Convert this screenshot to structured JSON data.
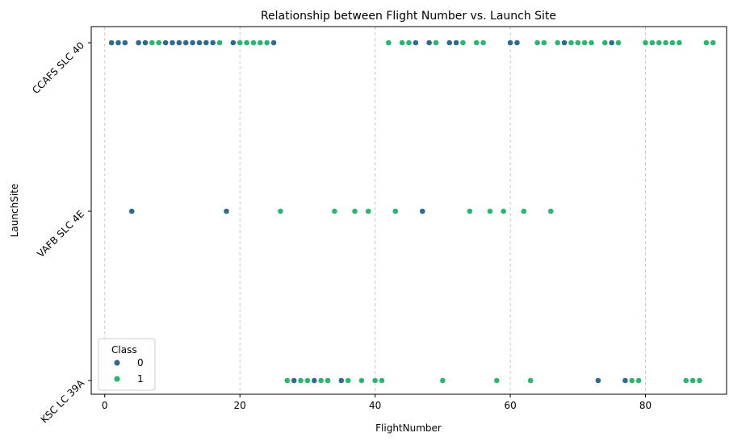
{
  "chart_data": {
    "type": "scatter",
    "title": "Relationship between Flight Number vs. Launch Site",
    "xlabel": "FlightNumber",
    "ylabel": "LaunchSite",
    "xlim": [
      -2,
      92
    ],
    "xticks": [
      0,
      20,
      40,
      60,
      80
    ],
    "categories": [
      "CCAFS SLC 40",
      "VAFB SLC 4E",
      "KSC LC 39A"
    ],
    "grid": "x-dashed",
    "legend": {
      "title": "Class",
      "position": "lower-left",
      "entries": [
        {
          "label": "0",
          "color": "#2f6b8e"
        },
        {
          "label": "1",
          "color": "#2ab66e"
        }
      ]
    },
    "series": [
      {
        "name": "0",
        "color": "#2f6b8e",
        "points": [
          {
            "x": 1,
            "site": "CCAFS SLC 40"
          },
          {
            "x": 2,
            "site": "CCAFS SLC 40"
          },
          {
            "x": 3,
            "site": "CCAFS SLC 40"
          },
          {
            "x": 5,
            "site": "CCAFS SLC 40"
          },
          {
            "x": 6,
            "site": "CCAFS SLC 40"
          },
          {
            "x": 9,
            "site": "CCAFS SLC 40"
          },
          {
            "x": 10,
            "site": "CCAFS SLC 40"
          },
          {
            "x": 11,
            "site": "CCAFS SLC 40"
          },
          {
            "x": 12,
            "site": "CCAFS SLC 40"
          },
          {
            "x": 13,
            "site": "CCAFS SLC 40"
          },
          {
            "x": 14,
            "site": "CCAFS SLC 40"
          },
          {
            "x": 15,
            "site": "CCAFS SLC 40"
          },
          {
            "x": 16,
            "site": "CCAFS SLC 40"
          },
          {
            "x": 19,
            "site": "CCAFS SLC 40"
          },
          {
            "x": 25,
            "site": "CCAFS SLC 40"
          },
          {
            "x": 46,
            "site": "CCAFS SLC 40"
          },
          {
            "x": 48,
            "site": "CCAFS SLC 40"
          },
          {
            "x": 51,
            "site": "CCAFS SLC 40"
          },
          {
            "x": 52,
            "site": "CCAFS SLC 40"
          },
          {
            "x": 60,
            "site": "CCAFS SLC 40"
          },
          {
            "x": 61,
            "site": "CCAFS SLC 40"
          },
          {
            "x": 68,
            "site": "CCAFS SLC 40"
          },
          {
            "x": 75,
            "site": "CCAFS SLC 40"
          },
          {
            "x": 4,
            "site": "VAFB SLC 4E"
          },
          {
            "x": 18,
            "site": "VAFB SLC 4E"
          },
          {
            "x": 47,
            "site": "VAFB SLC 4E"
          },
          {
            "x": 28,
            "site": "KSC LC 39A"
          },
          {
            "x": 31,
            "site": "KSC LC 39A"
          },
          {
            "x": 35,
            "site": "KSC LC 39A"
          },
          {
            "x": 73,
            "site": "KSC LC 39A"
          },
          {
            "x": 77,
            "site": "KSC LC 39A"
          }
        ]
      },
      {
        "name": "1",
        "color": "#2ab66e",
        "points": [
          {
            "x": 7,
            "site": "CCAFS SLC 40"
          },
          {
            "x": 8,
            "site": "CCAFS SLC 40"
          },
          {
            "x": 17,
            "site": "CCAFS SLC 40"
          },
          {
            "x": 20,
            "site": "CCAFS SLC 40"
          },
          {
            "x": 21,
            "site": "CCAFS SLC 40"
          },
          {
            "x": 22,
            "site": "CCAFS SLC 40"
          },
          {
            "x": 23,
            "site": "CCAFS SLC 40"
          },
          {
            "x": 24,
            "site": "CCAFS SLC 40"
          },
          {
            "x": 42,
            "site": "CCAFS SLC 40"
          },
          {
            "x": 44,
            "site": "CCAFS SLC 40"
          },
          {
            "x": 45,
            "site": "CCAFS SLC 40"
          },
          {
            "x": 49,
            "site": "CCAFS SLC 40"
          },
          {
            "x": 53,
            "site": "CCAFS SLC 40"
          },
          {
            "x": 55,
            "site": "CCAFS SLC 40"
          },
          {
            "x": 56,
            "site": "CCAFS SLC 40"
          },
          {
            "x": 64,
            "site": "CCAFS SLC 40"
          },
          {
            "x": 65,
            "site": "CCAFS SLC 40"
          },
          {
            "x": 67,
            "site": "CCAFS SLC 40"
          },
          {
            "x": 69,
            "site": "CCAFS SLC 40"
          },
          {
            "x": 70,
            "site": "CCAFS SLC 40"
          },
          {
            "x": 71,
            "site": "CCAFS SLC 40"
          },
          {
            "x": 72,
            "site": "CCAFS SLC 40"
          },
          {
            "x": 74,
            "site": "CCAFS SLC 40"
          },
          {
            "x": 76,
            "site": "CCAFS SLC 40"
          },
          {
            "x": 80,
            "site": "CCAFS SLC 40"
          },
          {
            "x": 81,
            "site": "CCAFS SLC 40"
          },
          {
            "x": 82,
            "site": "CCAFS SLC 40"
          },
          {
            "x": 83,
            "site": "CCAFS SLC 40"
          },
          {
            "x": 84,
            "site": "CCAFS SLC 40"
          },
          {
            "x": 85,
            "site": "CCAFS SLC 40"
          },
          {
            "x": 89,
            "site": "CCAFS SLC 40"
          },
          {
            "x": 90,
            "site": "CCAFS SLC 40"
          },
          {
            "x": 26,
            "site": "VAFB SLC 4E"
          },
          {
            "x": 34,
            "site": "VAFB SLC 4E"
          },
          {
            "x": 37,
            "site": "VAFB SLC 4E"
          },
          {
            "x": 39,
            "site": "VAFB SLC 4E"
          },
          {
            "x": 43,
            "site": "VAFB SLC 4E"
          },
          {
            "x": 54,
            "site": "VAFB SLC 4E"
          },
          {
            "x": 57,
            "site": "VAFB SLC 4E"
          },
          {
            "x": 59,
            "site": "VAFB SLC 4E"
          },
          {
            "x": 62,
            "site": "VAFB SLC 4E"
          },
          {
            "x": 66,
            "site": "VAFB SLC 4E"
          },
          {
            "x": 27,
            "site": "KSC LC 39A"
          },
          {
            "x": 29,
            "site": "KSC LC 39A"
          },
          {
            "x": 30,
            "site": "KSC LC 39A"
          },
          {
            "x": 32,
            "site": "KSC LC 39A"
          },
          {
            "x": 33,
            "site": "KSC LC 39A"
          },
          {
            "x": 36,
            "site": "KSC LC 39A"
          },
          {
            "x": 38,
            "site": "KSC LC 39A"
          },
          {
            "x": 40,
            "site": "KSC LC 39A"
          },
          {
            "x": 41,
            "site": "KSC LC 39A"
          },
          {
            "x": 50,
            "site": "KSC LC 39A"
          },
          {
            "x": 58,
            "site": "KSC LC 39A"
          },
          {
            "x": 63,
            "site": "KSC LC 39A"
          },
          {
            "x": 78,
            "site": "KSC LC 39A"
          },
          {
            "x": 79,
            "site": "KSC LC 39A"
          },
          {
            "x": 86,
            "site": "KSC LC 39A"
          },
          {
            "x": 87,
            "site": "KSC LC 39A"
          },
          {
            "x": 88,
            "site": "KSC LC 39A"
          }
        ]
      }
    ]
  }
}
